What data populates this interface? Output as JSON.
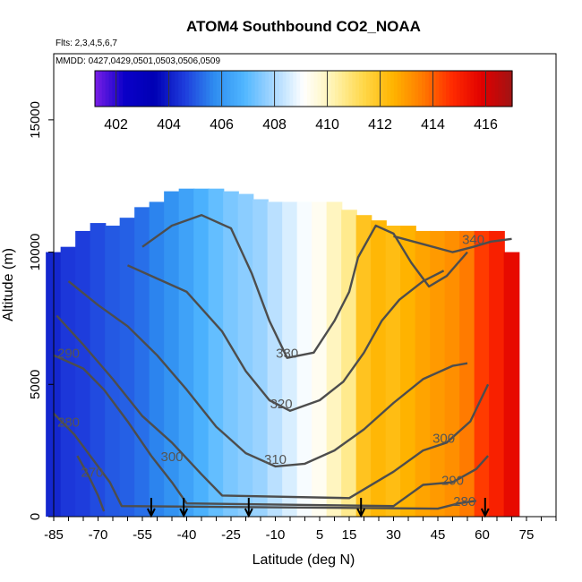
{
  "chart_data": {
    "type": "heatmap",
    "title": "ATOM4 Southbound CO2_NOAA",
    "flights_label": "Flts: 2,3,4,5,6,7",
    "dates_label": "MMDD: 0427,0429,0501,0503,0506,0509",
    "xlabel": "Latitude (deg N)",
    "ylabel": "Altitude (m)",
    "xlim": [
      -85,
      85
    ],
    "ylim": [
      0,
      17500
    ],
    "x_ticks": [
      -85,
      -70,
      -55,
      -40,
      -25,
      -10,
      5,
      15,
      30,
      45,
      60,
      75
    ],
    "y_ticks": [
      0,
      5000,
      10000,
      15000
    ],
    "colorbar": {
      "range": [
        401.2,
        417
      ],
      "ticks": [
        402,
        404,
        406,
        408,
        410,
        412,
        414,
        416
      ],
      "colors": [
        "#7a1ee6",
        "#0a00c8",
        "#0000b4",
        "#1e3cdc",
        "#2e8cf0",
        "#4fb6ff",
        "#a8d8ff",
        "#ffffff",
        "#fff3b0",
        "#ffd84a",
        "#ffb400",
        "#ff7a00",
        "#ff2a00",
        "#e00000",
        "#a01414"
      ]
    },
    "field_columns": [
      {
        "lat": -85,
        "top": 10000,
        "co2": 404.2
      },
      {
        "lat": -80,
        "top": 10200,
        "co2": 404.5
      },
      {
        "lat": -75,
        "top": 10800,
        "co2": 404.6
      },
      {
        "lat": -70,
        "top": 11100,
        "co2": 404.8
      },
      {
        "lat": -65,
        "top": 11000,
        "co2": 405.0
      },
      {
        "lat": -60,
        "top": 11300,
        "co2": 405.1
      },
      {
        "lat": -55,
        "top": 11700,
        "co2": 405.3
      },
      {
        "lat": -50,
        "top": 11900,
        "co2": 405.6
      },
      {
        "lat": -45,
        "top": 12300,
        "co2": 405.9
      },
      {
        "lat": -40,
        "top": 12400,
        "co2": 406.3
      },
      {
        "lat": -35,
        "top": 12400,
        "co2": 406.7
      },
      {
        "lat": -30,
        "top": 12400,
        "co2": 407.1
      },
      {
        "lat": -25,
        "top": 12300,
        "co2": 407.4
      },
      {
        "lat": -20,
        "top": 12200,
        "co2": 407.6
      },
      {
        "lat": -15,
        "top": 12000,
        "co2": 407.8
      },
      {
        "lat": -10,
        "top": 11900,
        "co2": 408.2
      },
      {
        "lat": -5,
        "top": 11900,
        "co2": 408.6
      },
      {
        "lat": 0,
        "top": 11900,
        "co2": 409.0
      },
      {
        "lat": 5,
        "top": 11900,
        "co2": 409.3
      },
      {
        "lat": 10,
        "top": 11900,
        "co2": 410.0
      },
      {
        "lat": 15,
        "top": 11600,
        "co2": 410.6
      },
      {
        "lat": 20,
        "top": 11400,
        "co2": 412.0
      },
      {
        "lat": 25,
        "top": 11200,
        "co2": 412.4
      },
      {
        "lat": 30,
        "top": 11000,
        "co2": 412.2
      },
      {
        "lat": 35,
        "top": 11000,
        "co2": 412.5
      },
      {
        "lat": 40,
        "top": 10800,
        "co2": 412.8
      },
      {
        "lat": 45,
        "top": 10800,
        "co2": 413.0
      },
      {
        "lat": 50,
        "top": 10800,
        "co2": 413.2
      },
      {
        "lat": 55,
        "top": 10800,
        "co2": 413.6
      },
      {
        "lat": 60,
        "top": 10800,
        "co2": 414.5
      },
      {
        "lat": 65,
        "top": 10800,
        "co2": 415.0
      },
      {
        "lat": 70,
        "top": 10000,
        "co2": 415.6
      }
    ],
    "contours": [
      {
        "label": "340",
        "label_lat": 57,
        "label_alt": 10300,
        "points": [
          [
            30,
            10600
          ],
          [
            40,
            10300
          ],
          [
            50,
            10000
          ],
          [
            57,
            10200
          ],
          [
            63,
            10400
          ],
          [
            70,
            10500
          ]
        ]
      },
      {
        "label": "330",
        "label_lat": -6,
        "label_alt": 6000,
        "points": [
          [
            -55,
            10200
          ],
          [
            -45,
            11000
          ],
          [
            -35,
            11400
          ],
          [
            -25,
            10900
          ],
          [
            -18,
            9200
          ],
          [
            -12,
            7400
          ],
          [
            -6,
            6000
          ],
          [
            3,
            6200
          ],
          [
            10,
            7400
          ],
          [
            15,
            8500
          ],
          [
            18,
            9800
          ],
          [
            24,
            11000
          ],
          [
            30,
            10700
          ],
          [
            36,
            9600
          ],
          [
            42,
            8700
          ],
          [
            48,
            9100
          ],
          [
            55,
            10000
          ]
        ]
      },
      {
        "label": "320",
        "label_lat": -8,
        "label_alt": 4100,
        "points": [
          [
            -60,
            9500
          ],
          [
            -50,
            9000
          ],
          [
            -40,
            8500
          ],
          [
            -28,
            7000
          ],
          [
            -20,
            5500
          ],
          [
            -12,
            4400
          ],
          [
            -5,
            4000
          ],
          [
            5,
            4400
          ],
          [
            13,
            5100
          ],
          [
            20,
            6200
          ],
          [
            26,
            7400
          ],
          [
            32,
            8200
          ],
          [
            40,
            8900
          ],
          [
            47,
            9300
          ]
        ]
      },
      {
        "label": "310",
        "label_lat": -10,
        "label_alt": 2000,
        "points": [
          [
            -80,
            8900
          ],
          [
            -70,
            8000
          ],
          [
            -60,
            7200
          ],
          [
            -50,
            6100
          ],
          [
            -40,
            4800
          ],
          [
            -30,
            3400
          ],
          [
            -20,
            2400
          ],
          [
            -10,
            1900
          ],
          [
            0,
            2000
          ],
          [
            10,
            2500
          ],
          [
            20,
            3300
          ],
          [
            30,
            4300
          ],
          [
            40,
            5200
          ],
          [
            50,
            5700
          ],
          [
            55,
            5800
          ]
        ]
      },
      {
        "label": "300",
        "label_lat": 47,
        "label_alt": 2800,
        "points": [
          [
            -84,
            7600
          ],
          [
            -75,
            6500
          ],
          [
            -65,
            5200
          ],
          [
            -55,
            3800
          ],
          [
            -45,
            2800
          ],
          [
            -35,
            1600
          ],
          [
            -28,
            800
          ],
          [
            15,
            700
          ],
          [
            30,
            1700
          ],
          [
            40,
            2500
          ],
          [
            48,
            2800
          ],
          [
            56,
            3600
          ],
          [
            62,
            5000
          ]
        ]
      },
      {
        "label": "290",
        "label_lat": -80,
        "label_alt": 6000,
        "points": [
          [
            -85,
            6100
          ],
          [
            -75,
            5600
          ],
          [
            -68,
            4800
          ],
          [
            -60,
            3600
          ],
          [
            -52,
            2300
          ],
          [
            -45,
            1300
          ],
          [
            -40,
            500
          ],
          [
            30,
            400
          ],
          [
            40,
            1200
          ],
          [
            50,
            1300
          ],
          [
            58,
            1800
          ],
          [
            62,
            2300
          ]
        ]
      },
      {
        "label": "280",
        "label_lat": -80,
        "label_alt": 3400,
        "points": [
          [
            -85,
            3900
          ],
          [
            -78,
            3100
          ],
          [
            -72,
            2200
          ],
          [
            -66,
            1300
          ],
          [
            -62,
            400
          ],
          [
            45,
            300
          ],
          [
            52,
            500
          ],
          [
            58,
            600
          ]
        ]
      },
      {
        "label": "270",
        "label_lat": -72,
        "label_alt": 1500,
        "points": [
          [
            -77,
            2300
          ],
          [
            -73,
            1500
          ],
          [
            -70,
            800
          ],
          [
            -68,
            200
          ]
        ]
      }
    ],
    "contour_tick_labels": [
      {
        "label": "340",
        "lat": 57,
        "alt": 10300
      },
      {
        "label": "330",
        "lat": -6,
        "alt": 6000
      },
      {
        "label": "320",
        "lat": -8,
        "alt": 4100
      },
      {
        "label": "310",
        "lat": -10,
        "alt": 2000
      },
      {
        "label": "300",
        "lat": 47,
        "alt": 2800
      },
      {
        "label": "290",
        "lat": -80,
        "alt": 6000
      },
      {
        "label": "280",
        "lat": -80,
        "alt": 3400
      },
      {
        "label": "270",
        "lat": -72,
        "alt": 1500
      },
      {
        "label": "300",
        "lat": -45,
        "alt": 2100
      },
      {
        "label": "290",
        "lat": 50,
        "alt": 1200
      },
      {
        "label": "280",
        "lat": 54,
        "alt": 400
      }
    ],
    "arrows_lat": [
      -52,
      -41,
      -19,
      19,
      61
    ],
    "colorbar_colors_note": ""
  }
}
